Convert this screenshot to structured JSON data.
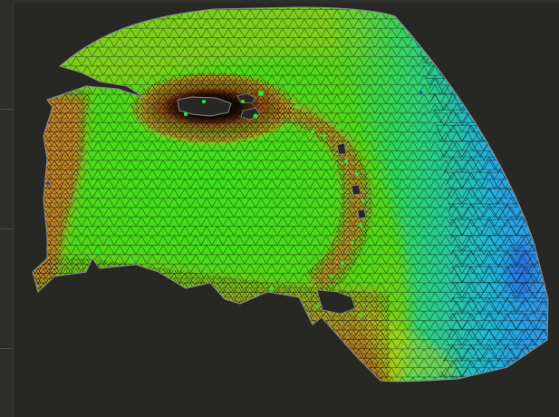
{
  "viewport": {
    "background": "#272723",
    "mesh": {
      "line_color": "#0c0c0c",
      "boundary_color": "#9a9a9a",
      "color_ramp": [
        "#1a0d05",
        "#8a4a14",
        "#c98a2c",
        "#cfc21c",
        "#7ad21e",
        "#22d82a",
        "#19d46e",
        "#1cc8b4",
        "#2aa6e8",
        "#3a8ae6"
      ]
    }
  }
}
